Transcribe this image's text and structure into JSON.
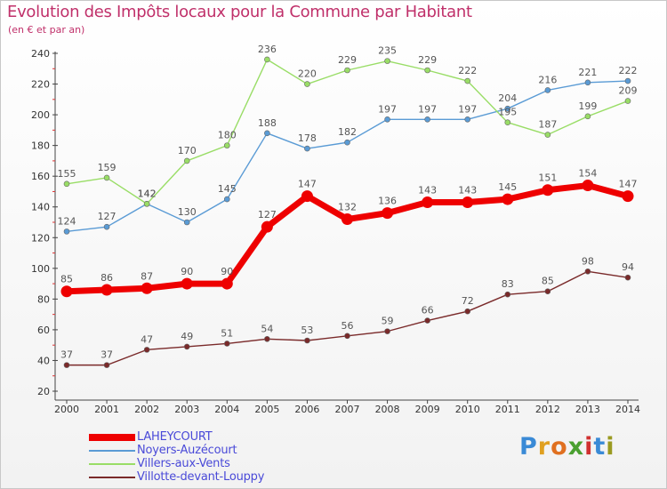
{
  "header": {
    "title": "Evolution des Impôts locaux pour la Commune par Habitant",
    "subtitle": "(en € et par an)"
  },
  "logo": {
    "letters": [
      "P",
      "r",
      "o",
      "x",
      "i",
      "t",
      "i"
    ],
    "colors": [
      "#3a8ad6",
      "#e0a020",
      "#e07020",
      "#4aa030",
      "#d03030",
      "#3a8ad6",
      "#9a9a20"
    ]
  },
  "chart_data": {
    "type": "line",
    "title": "Evolution des Impôts locaux pour la Commune par Habitant",
    "ylabel": "(en € et par an)",
    "xlabel": "",
    "ylim": [
      20,
      240
    ],
    "yticks": [
      20,
      40,
      60,
      80,
      100,
      120,
      140,
      160,
      180,
      200,
      220,
      240
    ],
    "grid": false,
    "legend_position": "bottom-left",
    "categories": [
      "2000",
      "2001",
      "2002",
      "2003",
      "2004",
      "2005",
      "2006",
      "2007",
      "2008",
      "2009",
      "2010",
      "2011",
      "2012",
      "2013",
      "2014"
    ],
    "series": [
      {
        "name": "LAHEYCOURT",
        "color": "#ee0000",
        "emphasis": true,
        "values": [
          85,
          86,
          87,
          90,
          90,
          127,
          147,
          132,
          136,
          143,
          143,
          145,
          151,
          154,
          147
        ]
      },
      {
        "name": "Noyers-Auzécourt",
        "color": "#5a9bd5",
        "emphasis": false,
        "values": [
          124,
          127,
          142,
          130,
          145,
          188,
          178,
          182,
          197,
          197,
          197,
          204,
          216,
          221,
          222
        ]
      },
      {
        "name": "Villers-aux-Vents",
        "color": "#99dd66",
        "emphasis": false,
        "values": [
          155,
          159,
          142,
          170,
          180,
          236,
          220,
          229,
          235,
          229,
          222,
          195,
          187,
          199,
          209
        ]
      },
      {
        "name": "Villotte-devant-Louppy",
        "color": "#7a2a2a",
        "emphasis": false,
        "values": [
          37,
          37,
          47,
          49,
          51,
          54,
          53,
          56,
          59,
          66,
          72,
          83,
          85,
          98,
          94
        ]
      }
    ]
  }
}
